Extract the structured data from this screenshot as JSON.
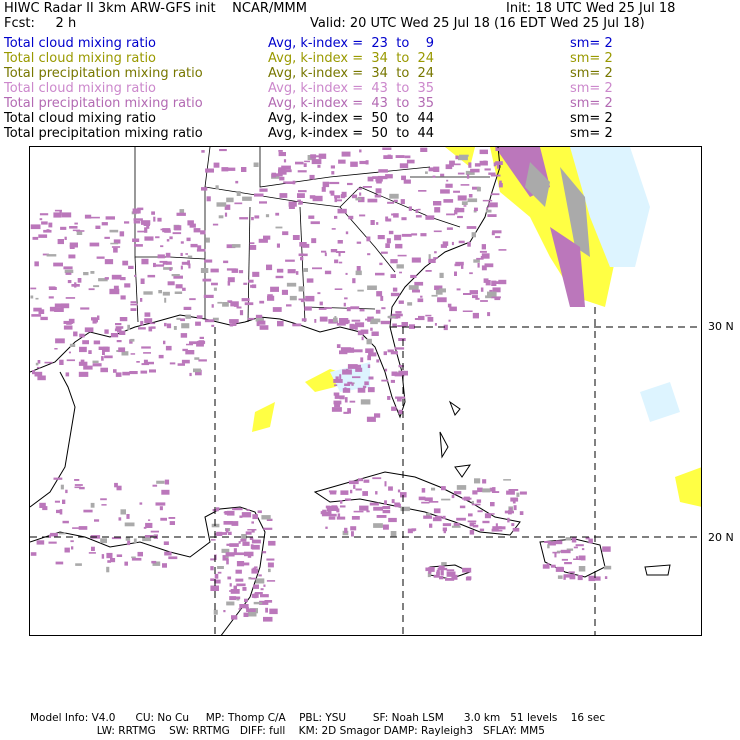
{
  "header": {
    "title": "HIWC Radar II 3km ARW-GFS init    NCAR/MMM",
    "init": "Init: 18 UTC Wed 25 Jul 18",
    "fcst": "Fcst:     2 h",
    "valid": "Valid: 20 UTC Wed 25 Jul 18 (16 EDT Wed 25 Jul 18)"
  },
  "legend": [
    {
      "field": "Total cloud mixing ratio",
      "avg": "Avg, k-index =  23  to    9",
      "sm": "sm= 2",
      "color": "#0000cc"
    },
    {
      "field": "Total cloud mixing ratio",
      "avg": "Avg, k-index =  34  to  24",
      "sm": "sm= 2",
      "color": "#999900"
    },
    {
      "field": "Total precipitation mixing ratio",
      "avg": "Avg, k-index =  34  to  24",
      "sm": "sm= 2",
      "color": "#777700"
    },
    {
      "field": "Total cloud mixing ratio",
      "avg": "Avg, k-index =  43  to  35",
      "sm": "sm= 2",
      "color": "#cc88cc"
    },
    {
      "field": "Total precipitation mixing ratio",
      "avg": "Avg, k-index =  43  to  35",
      "sm": "sm= 2",
      "color": "#b36ab3"
    },
    {
      "field": "Total cloud mixing ratio",
      "avg": "Avg, k-index =  50  to  44",
      "sm": "sm= 2",
      "color": "#000000"
    },
    {
      "field": "Total precipitation mixing ratio",
      "avg": "Avg, k-index =  50  to  44",
      "sm": "sm= 2",
      "color": "#000000"
    }
  ],
  "map": {
    "lat_labels": [
      "30 N",
      "20 N"
    ],
    "colors": {
      "land": "#ffffff",
      "coast": "#000000",
      "yellow": "#ffff44",
      "cyan": "#ddf4ff",
      "gray": "#aaaaaa",
      "purple": "#bb77bb",
      "grid": "#000000"
    }
  },
  "footer": {
    "line1": "Model Info: V4.0      CU: No Cu     MP: Thomp C/A    PBL: YSU        SF: Noah LSM      3.0 km   51 levels    16 sec",
    "line2": "                    LW: RRTMG    SW: RRTMG   DIFF: full    KM: 2D Smagor DAMP: Rayleigh3   SFLAY: MM5"
  }
}
